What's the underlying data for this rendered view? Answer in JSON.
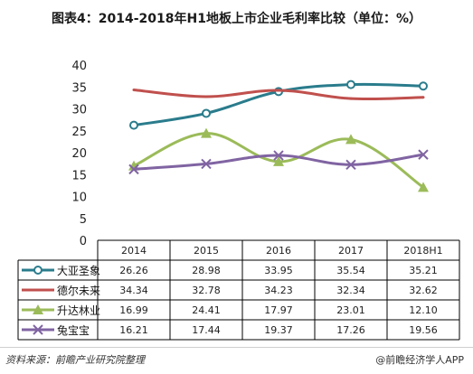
{
  "title": "图表4：2014-2018年H1地板上市企业毛利率比较（单位：%）",
  "source": "资料来源：前瞻产业研究院整理",
  "brand": "@前瞻经济学人APP",
  "chart_data": {
    "type": "line",
    "title": "图表4：2014-2018年H1地板上市企业毛利率比较（单位：%）",
    "categories": [
      "2014",
      "2015",
      "2016",
      "2017",
      "2018H1"
    ],
    "ylim": [
      0,
      40
    ],
    "yticks": [
      0,
      5,
      10,
      15,
      20,
      25,
      30,
      35,
      40
    ],
    "grid": false,
    "legend": "data-table-below",
    "series": [
      {
        "name": "大亚圣象",
        "values": [
          26.26,
          28.98,
          33.95,
          35.54,
          35.21
        ],
        "labels": [
          "26.26",
          "28.98",
          "33.95",
          "35.54",
          "35.21"
        ],
        "color": "#2a7c8c",
        "marker": "circle"
      },
      {
        "name": "德尔未来",
        "values": [
          34.34,
          32.78,
          34.23,
          32.34,
          32.62
        ],
        "labels": [
          "34.34",
          "32.78",
          "34.23",
          "32.34",
          "32.62"
        ],
        "color": "#c0504d",
        "marker": "none"
      },
      {
        "name": "升达林业",
        "values": [
          16.99,
          24.41,
          17.97,
          23.01,
          12.1
        ],
        "labels": [
          "16.99",
          "24.41",
          "17.97",
          "23.01",
          "12.10"
        ],
        "color": "#9bbb59",
        "marker": "triangle"
      },
      {
        "name": "兔宝宝",
        "values": [
          16.21,
          17.44,
          19.37,
          17.26,
          19.56
        ],
        "labels": [
          "16.21",
          "17.44",
          "19.37",
          "17.26",
          "19.56"
        ],
        "color": "#8064a2",
        "marker": "x"
      }
    ]
  }
}
